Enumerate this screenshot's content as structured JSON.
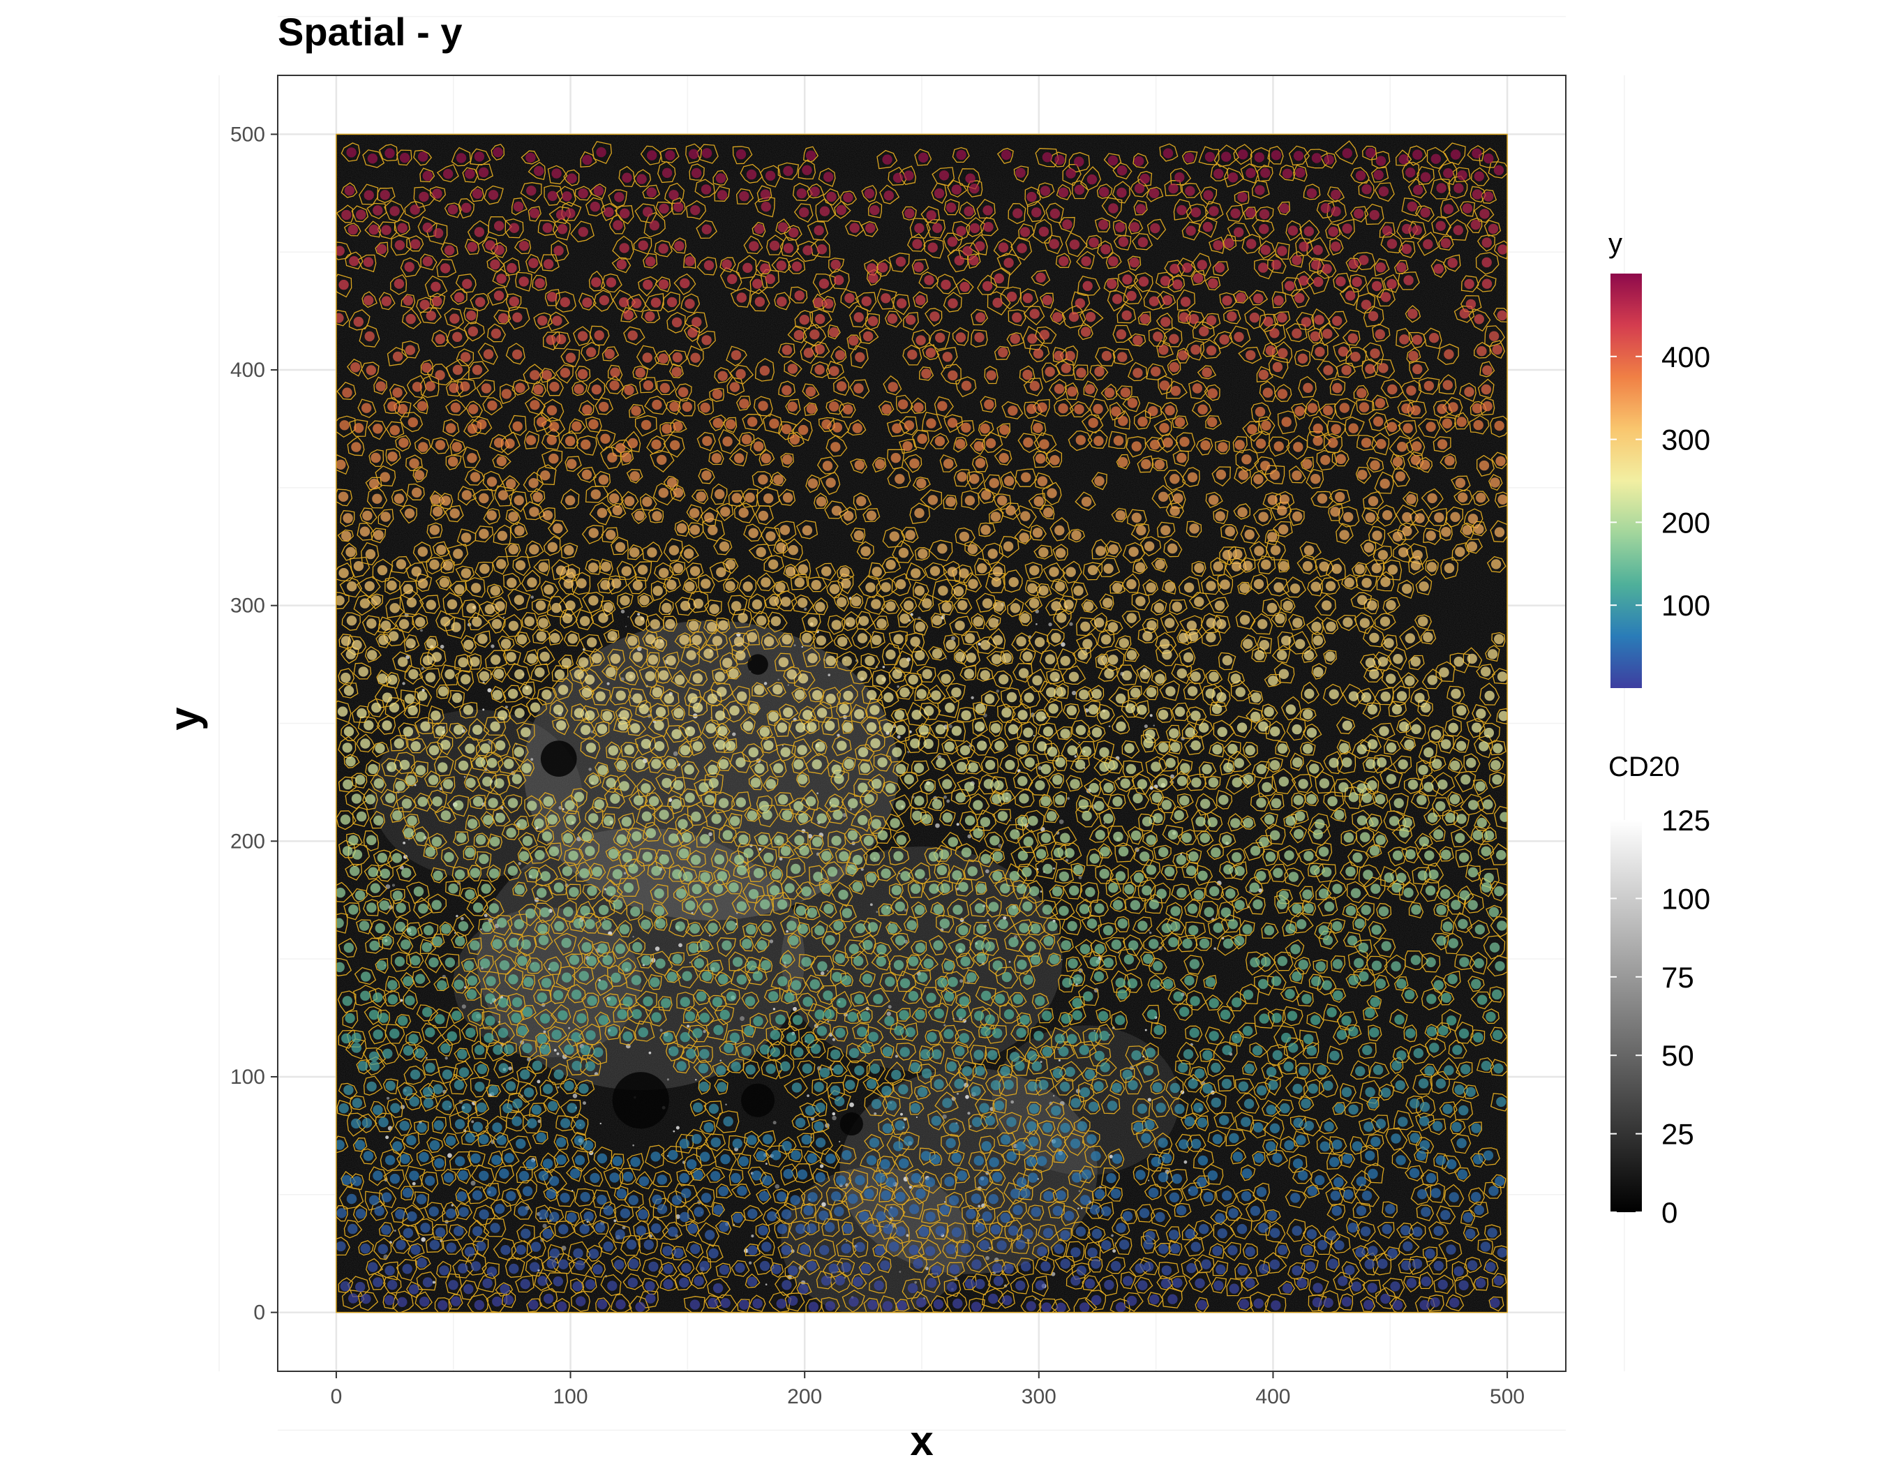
{
  "chart_data": {
    "type": "scatter",
    "title": "Spatial - y",
    "xlabel": "x",
    "ylabel": "y",
    "xlim": [
      -25,
      525
    ],
    "ylim": [
      -25,
      525
    ],
    "x_ticks": [
      0,
      100,
      200,
      300,
      400,
      500
    ],
    "y_ticks": [
      0,
      100,
      200,
      300,
      400,
      500
    ],
    "x_tick_labels": [
      "0",
      "100",
      "200",
      "300",
      "400",
      "500"
    ],
    "y_tick_labels": [
      "0",
      "100",
      "200",
      "300",
      "400",
      "500"
    ],
    "image_extent": {
      "x": [
        0,
        500
      ],
      "y": [
        0,
        500
      ]
    },
    "grid": true,
    "background_image": "CD20 channel intensity (grayscale) with cell segmentation outlines",
    "outline_color": "#DAA520",
    "point_color_variable": "y",
    "point_colormap": "Spectral",
    "point_count_estimate": 3600,
    "legends": [
      {
        "title": "y",
        "type": "colorbar",
        "placement": "right-top",
        "ticks": [
          100,
          200,
          300,
          400
        ],
        "tick_labels": [
          "100",
          "200",
          "300",
          "400"
        ],
        "range": [
          0,
          500
        ],
        "colors": [
          "#3E3EA0",
          "#2A7CB8",
          "#4FB09A",
          "#A3D69C",
          "#F2EFA2",
          "#F9C66E",
          "#F08045",
          "#D43D4F",
          "#8E0A4B"
        ]
      },
      {
        "title": "CD20",
        "type": "colorbar",
        "placement": "right-bottom",
        "ticks": [
          0,
          25,
          50,
          75,
          100,
          125
        ],
        "tick_labels": [
          "0",
          "25",
          "50",
          "75",
          "100",
          "125"
        ],
        "range": [
          0,
          125
        ],
        "colors": [
          "#000000",
          "#ffffff"
        ]
      }
    ]
  }
}
